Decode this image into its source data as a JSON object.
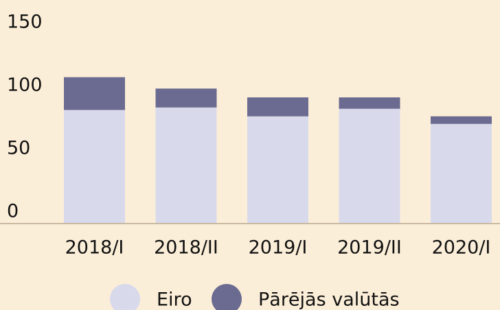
{
  "chart_data": {
    "type": "bar",
    "stacked": true,
    "categories": [
      "2018/I",
      "2018/II",
      "2019/I",
      "2019/II",
      "2020/I"
    ],
    "series": [
      {
        "name": "Eiro",
        "color": "#d9d9ec",
        "values": [
          90,
          92,
          85,
          91,
          79
        ]
      },
      {
        "name": "Pārējās valūtās",
        "color": "#6b6a90",
        "values": [
          26,
          15,
          15,
          9,
          6
        ]
      }
    ],
    "ylim": [
      0,
      150
    ],
    "yticks": [
      0,
      50,
      100,
      150
    ],
    "grid": false,
    "legend": "bottom"
  }
}
